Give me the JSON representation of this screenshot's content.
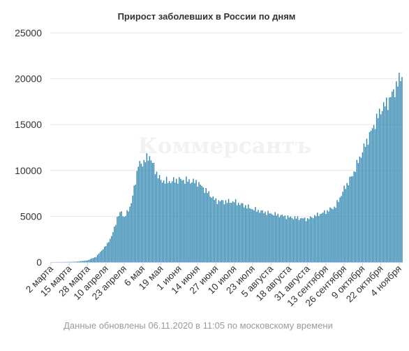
{
  "chart_data": {
    "type": "bar",
    "title": "Прирост заболевших в России по дням",
    "xlabel": "",
    "ylabel": "",
    "ylim": [
      0,
      25000
    ],
    "yticks": [
      "0",
      "5000",
      "10000",
      "15000",
      "20000",
      "25000"
    ],
    "grid": true,
    "bar_color": "#2f86b0",
    "grid_color": "#e6e6e6",
    "x_tick_labels": [
      "2 марта",
      "15 марта",
      "28 марта",
      "10 апреля",
      "23 апреля",
      "6 мая",
      "19 мая",
      "1 июня",
      "14 июня",
      "27 июня",
      "10 июля",
      "23 июля",
      "5 августа",
      "18 августа",
      "31 августа",
      "13 сентября",
      "26 сентября",
      "9 октября",
      "22 октября",
      "4 ноября"
    ],
    "x_range": [
      "2 марта",
      "6 ноября"
    ],
    "series_points": [
      {
        "day": "2 марта",
        "value": 0
      },
      {
        "day": "15 марта",
        "value": 30
      },
      {
        "day": "20 марта",
        "value": 50
      },
      {
        "day": "28 марта",
        "value": 200
      },
      {
        "day": "3 апреля",
        "value": 600
      },
      {
        "day": "10 апреля",
        "value": 1800
      },
      {
        "day": "14 апреля",
        "value": 2800
      },
      {
        "day": "18 апреля",
        "value": 4800
      },
      {
        "day": "21 апреля",
        "value": 5600
      },
      {
        "day": "23 апреля",
        "value": 4800
      },
      {
        "day": "28 апреля",
        "value": 6400
      },
      {
        "day": "3 мая",
        "value": 10600
      },
      {
        "day": "6 мая",
        "value": 10800
      },
      {
        "day": "11 мая",
        "value": 11600
      },
      {
        "day": "15 мая",
        "value": 10000
      },
      {
        "day": "19 мая",
        "value": 8900
      },
      {
        "day": "25 мая",
        "value": 8800
      },
      {
        "day": "1 июня",
        "value": 9000
      },
      {
        "day": "7 июня",
        "value": 8900
      },
      {
        "day": "14 июня",
        "value": 8700
      },
      {
        "day": "20 июня",
        "value": 7800
      },
      {
        "day": "27 июня",
        "value": 6700
      },
      {
        "day": "5 июля",
        "value": 6600
      },
      {
        "day": "10 июля",
        "value": 6600
      },
      {
        "day": "17 июля",
        "value": 6200
      },
      {
        "day": "23 июля",
        "value": 5800
      },
      {
        "day": "30 июля",
        "value": 5500
      },
      {
        "day": "5 августа",
        "value": 5300
      },
      {
        "day": "12 августа",
        "value": 5100
      },
      {
        "day": "18 августа",
        "value": 4900
      },
      {
        "day": "25 августа",
        "value": 4800
      },
      {
        "day": "31 августа",
        "value": 4700
      },
      {
        "day": "6 сентября",
        "value": 5100
      },
      {
        "day": "13 сентября",
        "value": 5500
      },
      {
        "day": "20 сентября",
        "value": 6100
      },
      {
        "day": "26 сентября",
        "value": 8000
      },
      {
        "day": "2 октября",
        "value": 9500
      },
      {
        "day": "9 октября",
        "value": 12100
      },
      {
        "day": "15 октября",
        "value": 14200
      },
      {
        "day": "22 октября",
        "value": 16600
      },
      {
        "day": "28 октября",
        "value": 17700
      },
      {
        "day": "4 ноября",
        "value": 19800
      },
      {
        "day": "6 ноября",
        "value": 20600
      }
    ]
  },
  "watermark": "Коммерсантъ",
  "footer": "Данные обновлены 06.11.2020 в 11:05 по московскому времени"
}
